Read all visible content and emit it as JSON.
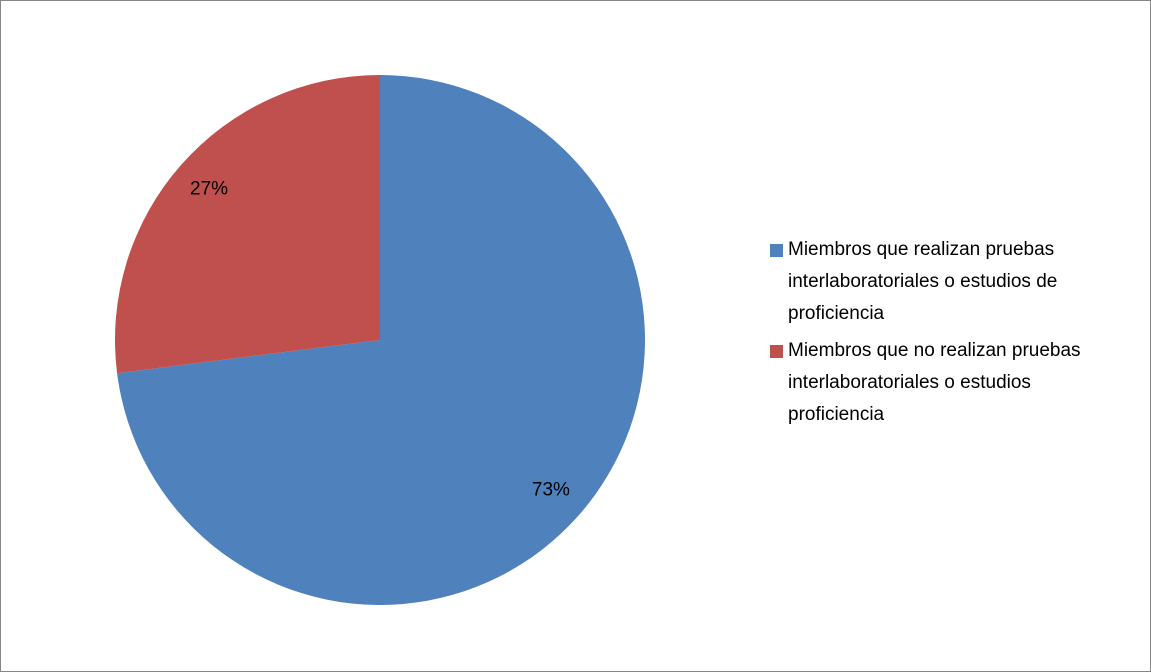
{
  "chart_data": {
    "type": "pie",
    "categories": [
      "Miembros que realizan pruebas interlaboratoriales o estudios de  proficiencia",
      "Miembros que no realizan pruebas interlaboratoriales o estudios proficiencia"
    ],
    "values": [
      73,
      27
    ],
    "value_labels": [
      "73%",
      "27%"
    ],
    "colors": [
      "#4f81bd",
      "#c0504d"
    ],
    "legend": "right"
  }
}
